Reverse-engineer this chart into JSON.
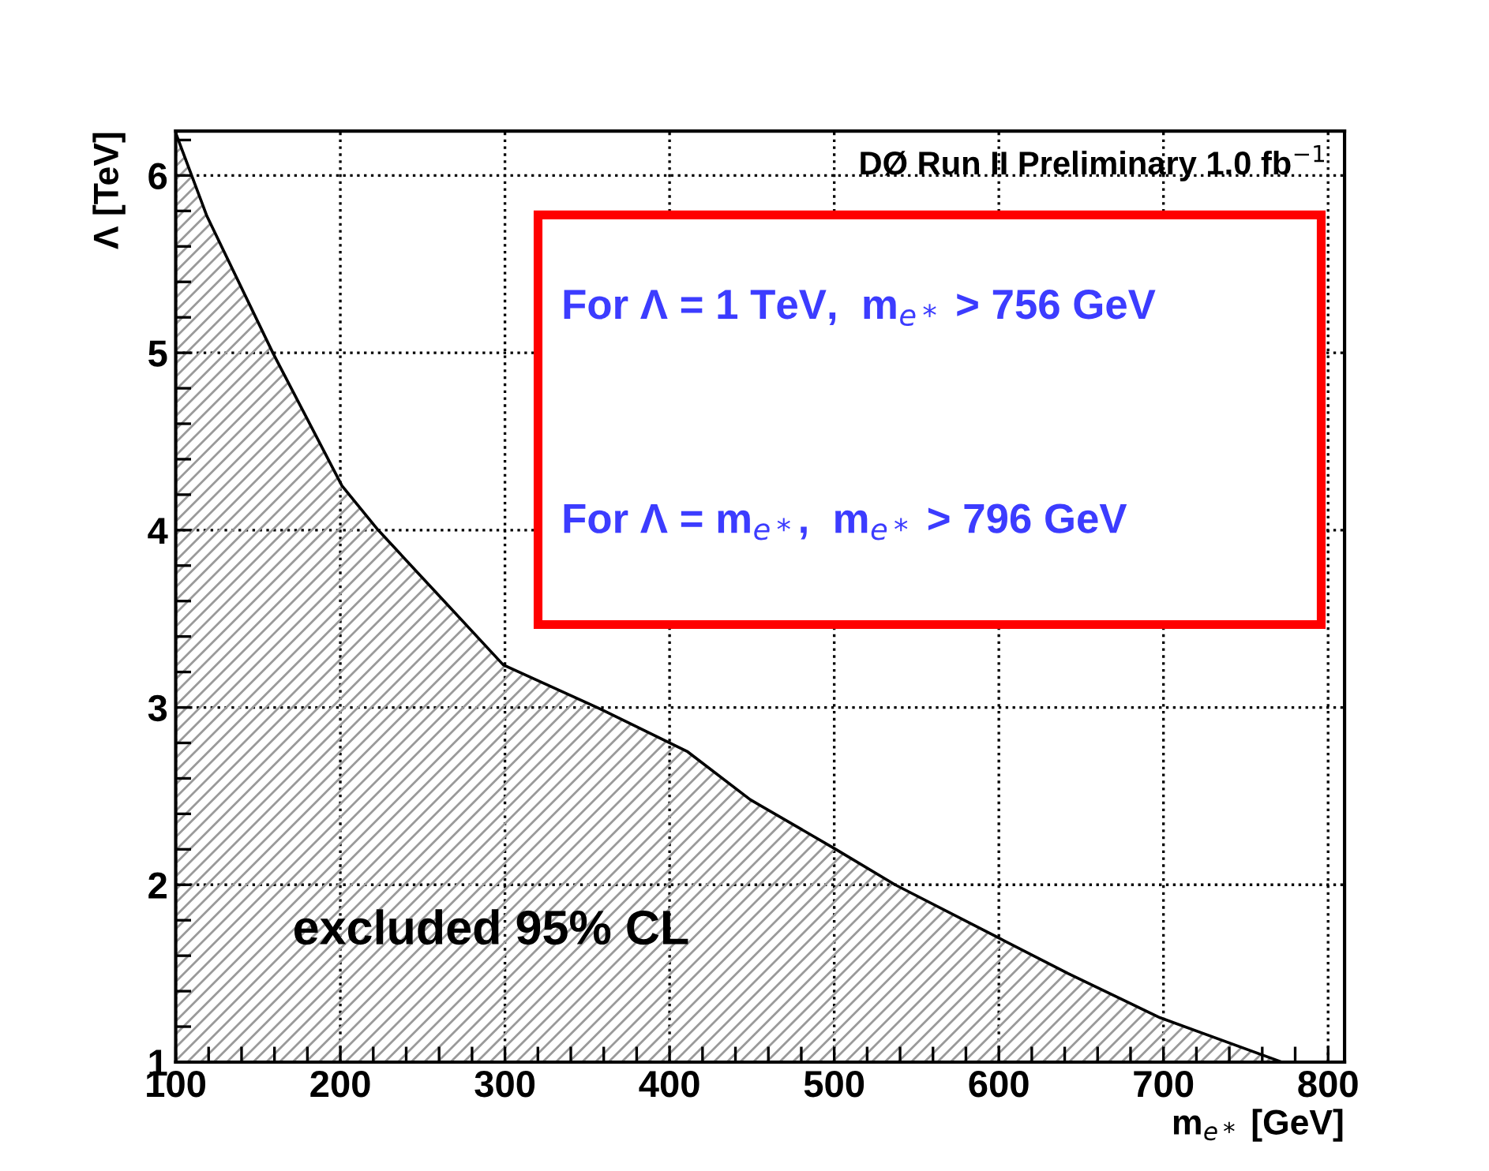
{
  "chart_data": {
    "type": "area",
    "xlabel": "m$_{e*}$ [GeV]",
    "ylabel": "Λ [TeV]",
    "x": [
      100,
      119,
      159,
      201,
      223,
      299,
      356,
      411,
      449,
      501,
      537,
      600,
      642,
      698,
      772
    ],
    "series": [
      {
        "color": "#000000",
        "values": [
          6.24,
          5.77,
          5.0,
          4.25,
          4.0,
          3.24,
          3.0,
          2.75,
          2.48,
          2.2,
          2.0,
          1.7,
          1.5,
          1.25,
          1.0
        ]
      }
    ],
    "xlim": [
      100,
      810
    ],
    "ylim": [
      1,
      6.25
    ],
    "xticks": [
      100,
      {
        "value": 120,
        "label": null
      },
      {
        "value": 140,
        "label": null
      },
      {
        "value": 160,
        "label": null
      },
      {
        "value": 180,
        "label": null
      },
      200,
      {
        "value": 220,
        "label": null
      },
      {
        "value": 240,
        "label": null
      },
      {
        "value": 260,
        "label": null
      },
      {
        "value": 280,
        "label": null
      },
      300,
      {
        "value": 320,
        "label": null
      },
      {
        "value": 340,
        "label": null
      },
      {
        "value": 360,
        "label": null
      },
      {
        "value": 380,
        "label": null
      },
      400,
      {
        "value": 420,
        "label": null
      },
      {
        "value": 440,
        "label": null
      },
      {
        "value": 460,
        "label": null
      },
      {
        "value": 480,
        "label": null
      },
      500,
      {
        "value": 520,
        "label": null
      },
      {
        "value": 540,
        "label": null
      },
      {
        "value": 560,
        "label": null
      },
      {
        "value": 580,
        "label": null
      },
      600,
      {
        "value": 620,
        "label": null
      },
      {
        "value": 640,
        "label": null
      },
      {
        "value": 660,
        "label": null
      },
      {
        "value": 680,
        "label": null
      },
      700,
      {
        "value": 720,
        "label": null
      },
      {
        "value": 740,
        "label": null
      },
      {
        "value": 760,
        "label": null
      },
      {
        "value": 780,
        "label": null
      },
      800
    ],
    "yticks": [
      1,
      {
        "value": 1.2,
        "label": null
      },
      {
        "value": 1.4,
        "label": null
      },
      {
        "value": 1.6,
        "label": null
      },
      {
        "value": 1.8,
        "label": null
      },
      2,
      {
        "value": 2.2,
        "label": null
      },
      {
        "value": 2.4,
        "label": null
      },
      {
        "value": 2.6,
        "label": null
      },
      {
        "value": 2.8,
        "label": null
      },
      3,
      {
        "value": 3.2,
        "label": null
      },
      {
        "value": 3.4,
        "label": null
      },
      {
        "value": 3.6,
        "label": null
      },
      {
        "value": 3.8,
        "label": null
      },
      4,
      {
        "value": 4.2,
        "label": null
      },
      {
        "value": 4.4,
        "label": null
      },
      {
        "value": 4.6,
        "label": null
      },
      {
        "value": 4.8,
        "label": null
      },
      5,
      {
        "value": 5.2,
        "label": null
      },
      {
        "value": 5.4,
        "label": null
      },
      {
        "value": 5.6,
        "label": null
      },
      {
        "value": 5.8,
        "label": null
      },
      6,
      {
        "value": 6.2,
        "label": null
      }
    ],
    "grid": true,
    "annotations": [
      "DØ Run II Preliminary 1.0 fb$^{−1}$",
      "For Λ = 1 TeV,  m$_{e*}$ > 756 GeV",
      "For Λ = m$_{e*}$,  m$_{e*}$ > 796 GeV",
      "excluded 95% CL"
    ]
  }
}
